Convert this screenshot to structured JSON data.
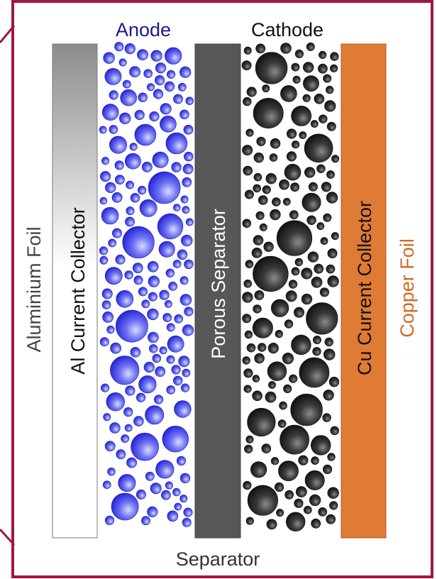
{
  "labels": {
    "anode": "Anode",
    "cathode": "Cathode",
    "separator_bottom": "Separator",
    "aluminium_foil": "Aluminium Foil",
    "al_collector": "Al Current Collector",
    "porous_separator": "Porous Separator",
    "cu_collector": "Cu Current Collector",
    "copper_foil": "Copper Foil"
  },
  "colors": {
    "frame": "#a0173f",
    "anode_text": "#1a1a8c",
    "anode_particle": "#2c2ce0",
    "cathode_particle": "#1c1c1c",
    "separator_fill": "#575757",
    "cu_fill": "#e07b35",
    "copper_text": "#d2691e"
  }
}
